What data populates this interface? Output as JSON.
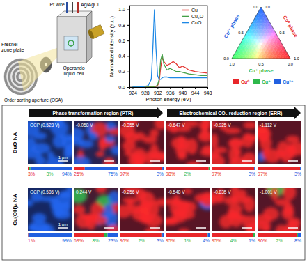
{
  "schematic": {
    "pt_wire": "Pt wire",
    "ag_agcl": "Ag/AgCl",
    "zone_plate": [
      "Fresnel",
      "zone plate"
    ],
    "osa": "Order sorting aperture (OSA)",
    "cell": [
      "Operando",
      "liquid cell"
    ]
  },
  "chart_data": {
    "type": "line",
    "x_label": "Photon energy (eV)",
    "y_label": "Normalized intensity (a.u.)",
    "x": [
      924,
      926,
      928,
      929,
      930,
      930.5,
      931,
      931.5,
      932,
      932.5,
      933,
      933.5,
      934,
      935,
      936,
      937,
      938,
      939,
      940,
      941,
      942,
      944,
      946,
      948
    ],
    "xlim": [
      923,
      948
    ],
    "xticks": [
      924,
      928,
      932,
      936,
      940,
      944,
      948
    ],
    "ylim": [
      0,
      1.05
    ],
    "yticks": [
      {
        "value": 0,
        "label": "0.0"
      },
      {
        "value": 0.2,
        "label": "0.2"
      },
      {
        "value": 0.4,
        "label": "0.4"
      },
      {
        "value": 0.6,
        "label": "0.6"
      },
      {
        "value": 0.8,
        "label": "0.8"
      },
      {
        "value": 1,
        "label": "1.0"
      }
    ],
    "legend": "upper right",
    "series": [
      {
        "name": "Cu",
        "color": "#e53935",
        "values": [
          0,
          0,
          0,
          0,
          0,
          0,
          0,
          0.01,
          0.02,
          0.06,
          0.25,
          0.38,
          0.33,
          0.28,
          0.3,
          0.33,
          0.3,
          0.25,
          0.27,
          0.25,
          0.22,
          0.2,
          0.19,
          0.18
        ]
      },
      {
        "name": "Cu₂O",
        "color": "#43a047",
        "values": [
          0,
          0,
          0,
          0,
          0,
          0,
          0.01,
          0.01,
          0.03,
          0.1,
          0.35,
          0.42,
          0.3,
          0.22,
          0.24,
          0.22,
          0.2,
          0.2,
          0.19,
          0.18,
          0.17,
          0.16,
          0.15,
          0.15
        ]
      },
      {
        "name": "CuO",
        "color": "#1e88e5",
        "values": [
          0,
          0,
          0.01,
          0.02,
          0.1,
          0.5,
          1.0,
          0.5,
          0.15,
          0.1,
          0.1,
          0.12,
          0.13,
          0.13,
          0.12,
          0.12,
          0.12,
          0.12,
          0.12,
          0.12,
          0.12,
          0.12,
          0.12,
          0.12
        ]
      }
    ]
  },
  "ternary": {
    "side_labels": {
      "left": "Cu²⁺ phase",
      "right": "Cu⁰ phase",
      "bottom": "Cu⁺ phase"
    },
    "ticks": [
      {
        "value": 0,
        "label": "0.0"
      },
      {
        "value": 0.5,
        "label": "0.5"
      },
      {
        "value": 1,
        "label": "1.0"
      }
    ]
  },
  "phases": [
    {
      "name": "Cu⁰",
      "color": "#e8262a"
    },
    {
      "name": "Cu⁺",
      "color": "#2eb84b"
    },
    {
      "name": "Cu²⁺",
      "color": "#2160e0"
    }
  ],
  "regions": [
    "Phase transformation region (PTR)",
    "Electrochemical CO₂ reduction region (ERR)"
  ],
  "rows": [
    {
      "label": "CuO NA",
      "scale_bar": "1 μm",
      "panels": [
        {
          "potential": "OCP (0.523 V)",
          "composition": [
            {
              "value": 3,
              "label": "3%"
            },
            {
              "value": 3,
              "label": "3%"
            },
            {
              "value": 94,
              "label": "94%"
            }
          ]
        },
        {
          "potential": "-0.058 V",
          "composition": [
            {
              "value": 25,
              "label": "25%"
            },
            null,
            {
              "value": 75,
              "label": "75%"
            }
          ]
        },
        {
          "potential": "-0.355 V",
          "composition": [
            {
              "value": 97,
              "label": "97%"
            },
            null,
            {
              "value": 3,
              "label": "3%"
            }
          ]
        },
        {
          "potential": "-0.647 V",
          "composition": [
            {
              "value": 98,
              "label": "98%"
            },
            {
              "value": 2,
              "label": "2%"
            },
            null
          ]
        },
        {
          "potential": "-0.925 V",
          "composition": [
            {
              "value": 97,
              "label": "97%"
            },
            null,
            {
              "value": 3,
              "label": "3%"
            }
          ]
        },
        {
          "potential": "-1.112 V",
          "composition": [
            {
              "value": 97,
              "label": "97%"
            },
            null,
            {
              "value": 3,
              "label": "3%"
            }
          ]
        }
      ]
    },
    {
      "label": "Cu(OH)₂ NA",
      "scale_bar": "1 μm",
      "panels": [
        {
          "potential": "OCP (0.586 V)",
          "composition": [
            {
              "value": 1,
              "label": "1%"
            },
            null,
            {
              "value": 99,
              "label": "99%"
            }
          ]
        },
        {
          "potential": "0.244 V",
          "composition": [
            {
              "value": 69,
              "label": "69%"
            },
            {
              "value": 8,
              "label": "8%"
            },
            {
              "value": 23,
              "label": "23%"
            }
          ]
        },
        {
          "potential": "-0.256 V",
          "composition": [
            {
              "value": 95,
              "label": "95%"
            },
            {
              "value": 2,
              "label": "2%"
            },
            {
              "value": 3,
              "label": "3%"
            }
          ]
        },
        {
          "potential": "-0.548 V",
          "composition": [
            {
              "value": 95,
              "label": "95%"
            },
            {
              "value": 1,
              "label": "1%"
            },
            {
              "value": 4,
              "label": "4%"
            }
          ]
        },
        {
          "potential": "-0.835 V",
          "composition": [
            {
              "value": 95,
              "label": "95%"
            },
            {
              "value": 4,
              "label": "4%"
            },
            {
              "value": 1,
              "label": "1%"
            }
          ]
        },
        {
          "potential": "-1.001 V",
          "composition": [
            {
              "value": 90,
              "label": "90%"
            },
            {
              "value": 2,
              "label": "2%"
            },
            {
              "value": 8,
              "label": "8%"
            }
          ]
        }
      ]
    }
  ]
}
